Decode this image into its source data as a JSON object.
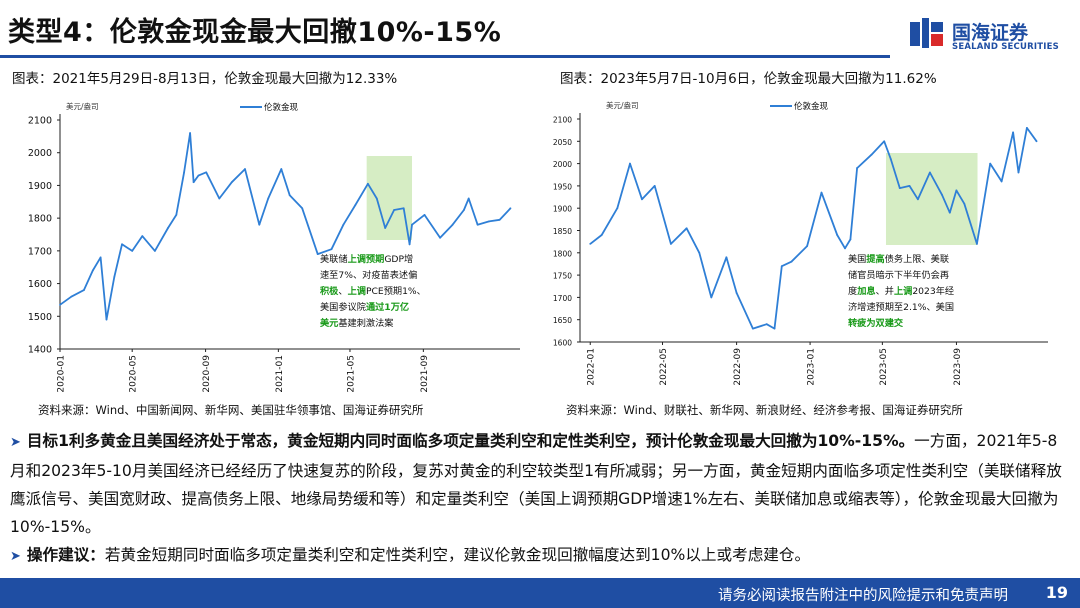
{
  "header": {
    "title": "类型4：伦敦金现金最大回撤10%-15%",
    "brand_cn": "国海证券",
    "brand_en": "SEALAND SECURITIES"
  },
  "left": {
    "caption": "图表：2021年5月29日-8月13日，伦敦金现最大回撤为12.33%",
    "source": "资料来源：Wind、中国新闻网、新华网、美国驻华领事馆、国海证券研究所",
    "annotation_lines": [
      [
        {
          "t": "美联储",
          "c": "#111"
        },
        {
          "t": "上调预期",
          "c": "#1a9a1a"
        },
        {
          "t": "GDP增",
          "c": "#111"
        }
      ],
      [
        {
          "t": "速至7%、对疫苗表述偏",
          "c": "#111"
        }
      ],
      [
        {
          "t": "积极",
          "c": "#1a9a1a"
        },
        {
          "t": "、",
          "c": "#111"
        },
        {
          "t": "上调",
          "c": "#1a9a1a"
        },
        {
          "t": "PCE预期1%、",
          "c": "#111"
        }
      ],
      [
        {
          "t": "美国参议院",
          "c": "#111"
        },
        {
          "t": "通过1万亿",
          "c": "#1a9a1a"
        }
      ],
      [
        {
          "t": "美元",
          "c": "#1a9a1a"
        },
        {
          "t": "基建刺激法案",
          "c": "#111"
        }
      ]
    ]
  },
  "right": {
    "caption": "图表：2023年5月7日-10月6日，伦敦金现最大回撤为11.62%",
    "source": "资料来源：Wind、财联社、新华网、新浪财经、经济参考报、国海证券研究所",
    "annotation_lines": [
      [
        {
          "t": "美国",
          "c": "#111"
        },
        {
          "t": "提高",
          "c": "#1a9a1a"
        },
        {
          "t": "债务上限、美联",
          "c": "#111"
        }
      ],
      [
        {
          "t": "储官员暗示下半年仍会再",
          "c": "#111"
        }
      ],
      [
        {
          "t": "度",
          "c": "#111"
        },
        {
          "t": "加息",
          "c": "#1a9a1a"
        },
        {
          "t": "、并",
          "c": "#111"
        },
        {
          "t": "上调",
          "c": "#1a9a1a"
        },
        {
          "t": "2023年经",
          "c": "#111"
        }
      ],
      [
        {
          "t": "济增速预期至2.1%、美国",
          "c": "#111"
        }
      ],
      [
        {
          "t": "转疲为双建交",
          "c": "#1a9a1a"
        }
      ]
    ]
  },
  "body": {
    "p1_bold": "目标1利多黄金且美国经济处于常态，黄金短期内同时面临多项定量类利空和定性类利空，预计伦敦金现最大回撤为10%-15%。",
    "p1_rest": "一方面，2021年5-8月和2023年5-10月美国经济已经经历了快速复苏的阶段，复苏对黄金的利空较类型1有所减弱；另一方面，黄金短期内面临多项定性类利空（美联储释放鹰派信号、美国宽财政、提高债务上限、地缘局势缓和等）和定量类利空（美国上调预期GDP增速1%左右、美联储加息或缩表等），伦敦金现最大回撤为10%-15%。",
    "p2_bold": "操作建议：",
    "p2_rest": "若黄金短期同时面临多项定量类利空和定性类利空，建议伦敦金现回撤幅度达到10%以上或考虑建仓。"
  },
  "footer": {
    "disclaimer": "请务必阅读报告附注中的风险提示和免责声明",
    "page": "19"
  },
  "colors": {
    "accent": "#1f4ea3",
    "line": "#2f7fd6",
    "highlight": "#d6edc4",
    "green_text": "#1a9a1a"
  },
  "chart_data": [
    {
      "type": "line",
      "unit_label": "美元/盎司",
      "series": [
        {
          "name": "伦敦金现",
          "x": [
            "2020-01-01",
            "2020-01-20",
            "2020-02-10",
            "2020-02-25",
            "2020-03-09",
            "2020-03-19",
            "2020-04-01",
            "2020-04-14",
            "2020-05-01",
            "2020-05-18",
            "2020-06-08",
            "2020-06-30",
            "2020-07-14",
            "2020-07-27",
            "2020-08-06",
            "2020-08-12",
            "2020-08-20",
            "2020-09-02",
            "2020-09-24",
            "2020-10-15",
            "2020-11-06",
            "2020-11-30",
            "2020-12-15",
            "2021-01-06",
            "2021-01-20",
            "2021-02-10",
            "2021-03-08",
            "2021-03-31",
            "2021-04-20",
            "2021-05-10",
            "2021-05-31",
            "2021-06-15",
            "2021-06-29",
            "2021-07-14",
            "2021-07-30",
            "2021-08-09",
            "2021-08-13",
            "2021-09-03",
            "2021-09-29",
            "2021-10-20",
            "2021-11-08",
            "2021-11-16",
            "2021-12-01",
            "2021-12-20",
            "2022-01-07",
            "2022-01-25"
          ],
          "values": [
            1535,
            1560,
            1580,
            1640,
            1680,
            1490,
            1620,
            1720,
            1700,
            1745,
            1700,
            1770,
            1810,
            1940,
            2060,
            1910,
            1930,
            1940,
            1860,
            1910,
            1950,
            1780,
            1860,
            1950,
            1870,
            1830,
            1690,
            1705,
            1780,
            1840,
            1905,
            1860,
            1770,
            1825,
            1830,
            1720,
            1780,
            1810,
            1740,
            1780,
            1825,
            1860,
            1780,
            1790,
            1795,
            1830
          ]
        }
      ],
      "highlight": {
        "x": [
          "2021-05-29",
          "2021-08-13"
        ]
      },
      "xlim": [
        "2020-01-01",
        "2022-02-10"
      ],
      "ylim": [
        1400,
        2100
      ],
      "xticks": [
        "2020-01",
        "2020-05",
        "2020-09",
        "2021-01",
        "2021-05",
        "2021-09"
      ],
      "yticks": [
        1400,
        1500,
        1600,
        1700,
        1800,
        1900,
        2000,
        2100
      ],
      "legend": "top"
    },
    {
      "type": "line",
      "unit_label": "美元/盎司",
      "series": [
        {
          "name": "伦敦金现",
          "x": [
            "2022-01-01",
            "2022-01-20",
            "2022-02-15",
            "2022-03-08",
            "2022-03-28",
            "2022-04-18",
            "2022-05-15",
            "2022-06-10",
            "2022-07-01",
            "2022-07-21",
            "2022-08-15",
            "2022-09-01",
            "2022-09-28",
            "2022-10-21",
            "2022-11-03",
            "2022-11-15",
            "2022-12-01",
            "2022-12-27",
            "2023-01-20",
            "2023-02-15",
            "2023-02-28",
            "2023-03-09",
            "2023-03-20",
            "2023-04-13",
            "2023-05-04",
            "2023-05-15",
            "2023-05-30",
            "2023-06-15",
            "2023-06-29",
            "2023-07-19",
            "2023-08-08",
            "2023-08-21",
            "2023-09-01",
            "2023-09-14",
            "2023-10-05",
            "2023-10-10",
            "2023-10-27",
            "2023-11-15",
            "2023-12-04",
            "2023-12-13",
            "2023-12-27",
            "2024-01-12"
          ],
          "values": [
            1820,
            1840,
            1900,
            2000,
            1920,
            1950,
            1820,
            1855,
            1800,
            1700,
            1790,
            1710,
            1630,
            1640,
            1630,
            1770,
            1780,
            1815,
            1935,
            1840,
            1810,
            1830,
            1990,
            2020,
            2050,
            2010,
            1945,
            1950,
            1920,
            1980,
            1930,
            1890,
            1940,
            1910,
            1820,
            1860,
            2000,
            1960,
            2070,
            1980,
            2080,
            2050
          ]
        }
      ],
      "highlight": {
        "x": [
          "2023-05-07",
          "2023-10-06"
        ]
      },
      "xlim": [
        "2021-12-15",
        "2024-01-31"
      ],
      "ylim": [
        1600,
        2100
      ],
      "xticks": [
        "2022-01",
        "2022-05",
        "2022-09",
        "2023-01",
        "2023-05",
        "2023-09"
      ],
      "yticks": [
        1600,
        1650,
        1700,
        1750,
        1800,
        1850,
        1900,
        1950,
        2000,
        2050,
        2100
      ],
      "legend": "top"
    }
  ]
}
